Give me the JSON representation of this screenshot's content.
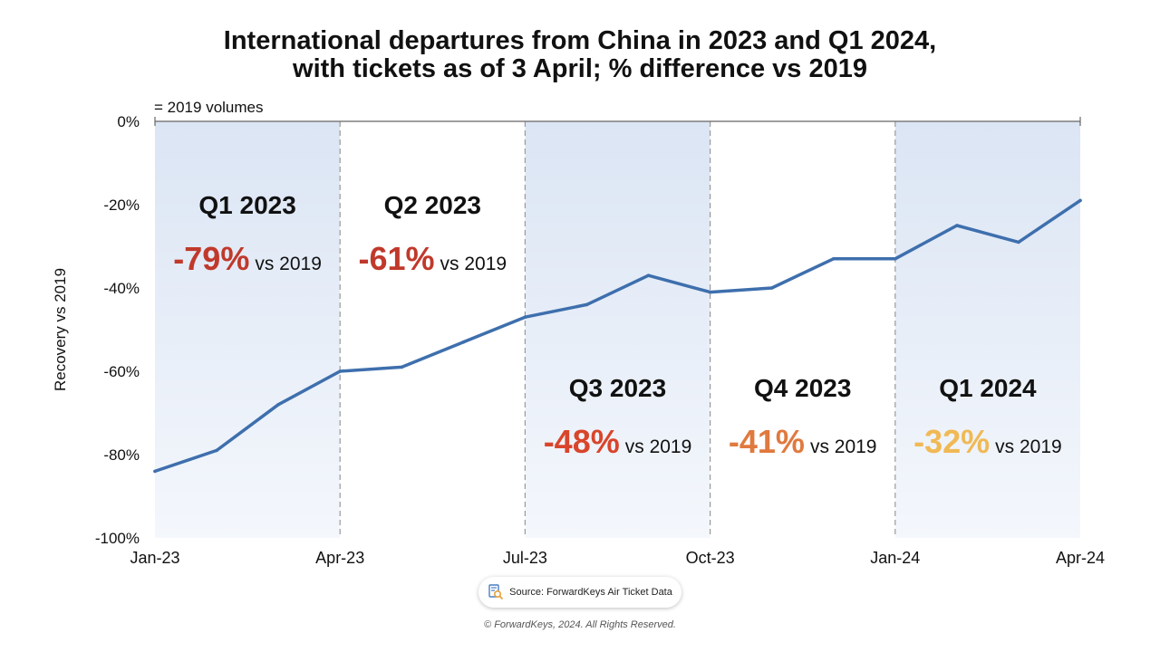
{
  "title": {
    "line1": "International departures from China in 2023 and Q1 2024,",
    "line2": "with tickets as of 3 April; % difference vs 2019"
  },
  "chart_data": {
    "type": "line",
    "title": "International departures from China in 2023 and Q1 2024, with tickets as of 3 April; % difference vs 2019",
    "ylabel": "Recovery vs 2019",
    "xlabel": "",
    "baseline_label": "= 2019 volumes",
    "ylim": [
      -100,
      0
    ],
    "y_ticks": [
      0,
      -20,
      -40,
      -60,
      -80,
      -100
    ],
    "y_tick_labels": [
      "0%",
      "-20%",
      "-40%",
      "-60%",
      "-80%",
      "-100%"
    ],
    "x_tick_labels": [
      "Jan-23",
      "Apr-23",
      "Jul-23",
      "Oct-23",
      "Jan-24",
      "Apr-24"
    ],
    "x_months": [
      "Jan-23",
      "Feb-23",
      "Mar-23",
      "Apr-23",
      "May-23",
      "Jun-23",
      "Jul-23",
      "Aug-23",
      "Sep-23",
      "Oct-23",
      "Nov-23",
      "Dec-23",
      "Jan-24",
      "Feb-24",
      "Mar-24",
      "Apr-24"
    ],
    "series": [
      {
        "values": [
          -84,
          -79,
          -68,
          -60,
          -59,
          -53,
          -47,
          -44,
          -37,
          -41,
          -40,
          -33,
          -33,
          -25,
          -29,
          -19
        ],
        "color": "#3e6fad"
      }
    ],
    "grid": false,
    "quarters": [
      {
        "label": "Q1 2023",
        "pct": "-79%",
        "suffix": "vs 2019",
        "color": "#c0392b",
        "shaded": true,
        "row": "top"
      },
      {
        "label": "Q2 2023",
        "pct": "-61%",
        "suffix": "vs 2019",
        "color": "#c0392b",
        "shaded": false,
        "row": "top"
      },
      {
        "label": "Q3 2023",
        "pct": "-48%",
        "suffix": "vs 2019",
        "color": "#d9452b",
        "shaded": true,
        "row": "bottom"
      },
      {
        "label": "Q4 2023",
        "pct": "-41%",
        "suffix": "vs 2019",
        "color": "#e0793e",
        "shaded": false,
        "row": "bottom"
      },
      {
        "label": "Q1 2024",
        "pct": "-32%",
        "suffix": "vs 2019",
        "color": "#f0b955",
        "shaded": true,
        "row": "bottom"
      }
    ]
  },
  "footer": {
    "source": "Source: ForwardKeys Air Ticket Data",
    "copyright": "© ForwardKeys, 2024. All Rights Reserved."
  },
  "colors": {
    "line": "#3e6fad",
    "shade": "#dfe8f6",
    "divider": "#9a9a9a"
  },
  "icons": {
    "source": "search-document-icon"
  }
}
